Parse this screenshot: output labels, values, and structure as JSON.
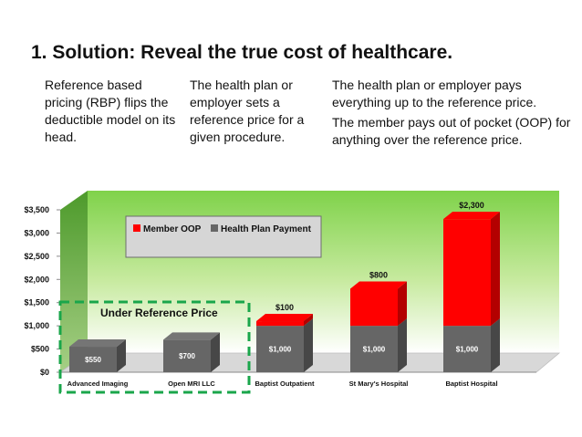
{
  "slide": {
    "title": "1. Solution: Reveal the true cost of healthcare.",
    "col1": "Reference based pricing (RBP) flips the deductible model on its head.",
    "col2": "The health plan or employer sets a reference price for a given procedure.",
    "col3a": "The health plan or employer pays everything up to the reference price.",
    "col3b": "The member pays out of pocket (OOP) for anything over the reference price."
  },
  "chart_data": {
    "type": "bar",
    "stacked": true,
    "categories": [
      "Advanced Imaging",
      "Open MRI LLC",
      "Baptist Outpatient",
      "St Mary's Hospital",
      "Baptist Hospital"
    ],
    "series": [
      {
        "name": "Health Plan Payment",
        "color": "#666666",
        "values": [
          550,
          700,
          1000,
          1000,
          1000
        ],
        "labels": [
          "$550",
          "$700",
          "$1,000",
          "$1,000",
          "$1,000"
        ]
      },
      {
        "name": "Member OOP",
        "color": "#ff0000",
        "values": [
          0,
          0,
          100,
          800,
          2300
        ],
        "labels": [
          "",
          "",
          "$100",
          "$800",
          "$2,300"
        ]
      }
    ],
    "yticks": [
      "$0",
      "$500",
      "$1,000",
      "$1,500",
      "$2,000",
      "$2,500",
      "$3,000",
      "$3,500"
    ],
    "ylim": [
      0,
      3500
    ],
    "legend_order": [
      "Member OOP",
      "Health Plan Payment"
    ],
    "legend_position": "top-left",
    "annotation": "Under Reference Price",
    "background": "green gradient wall",
    "grid": false
  }
}
